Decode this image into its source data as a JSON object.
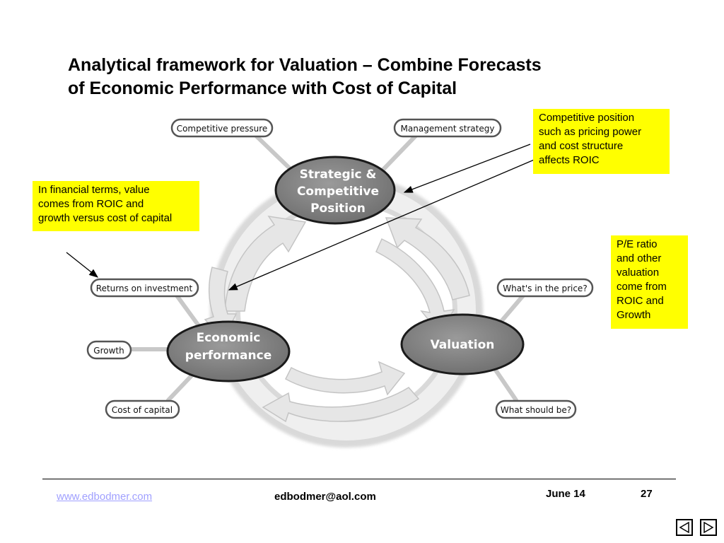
{
  "title": {
    "line1": "Analytical framework for Valuation – Combine Forecasts",
    "line2": "of Economic Performance with Cost of Capital"
  },
  "nodes": {
    "strategic": {
      "line1": "Strategic &",
      "line2": "Competitive",
      "line3": "Position"
    },
    "economic": {
      "line1": "Economic",
      "line2": "performance"
    },
    "valuation": {
      "line1": "Valuation"
    }
  },
  "pills": {
    "competitive_pressure": "Competitive pressure",
    "management_strategy": "Management strategy",
    "returns_on_investment": "Returns on investment",
    "growth": "Growth",
    "cost_of_capital": "Cost of capital",
    "whats_in_price": "What's in the price?",
    "what_should_be": "What should be?"
  },
  "notes": {
    "competitive": {
      "line1": "Competitive position",
      "line2": "such as pricing power",
      "line3": "and cost structure",
      "line4": "affects ROIC"
    },
    "financial": {
      "line1": "In financial terms, value",
      "line2": "comes from ROIC and",
      "line3": "growth versus cost of capital"
    },
    "pe": {
      "line1": "P/E ratio",
      "line2": "and other",
      "line3": "valuation",
      "line4": "come from",
      "line5": "ROIC and",
      "line6": "Growth"
    }
  },
  "footer": {
    "website": "www.edbodmer.com",
    "email": "edbodmer@aol.com",
    "date": "June 14",
    "page": "27"
  },
  "colors": {
    "highlight": "#ffff00",
    "node_fill": "#808080",
    "link": "#a0a0ff"
  }
}
